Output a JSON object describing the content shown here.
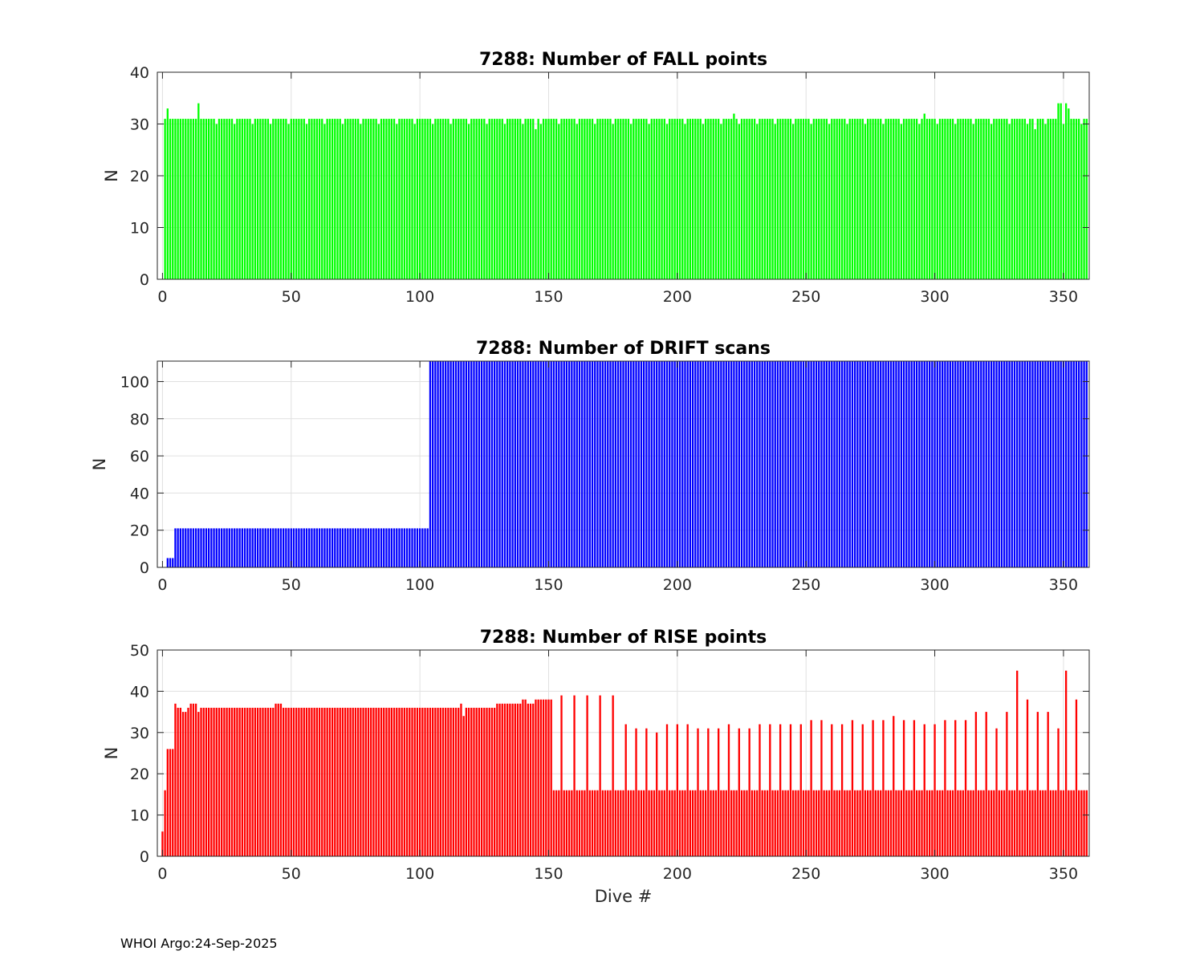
{
  "footer": {
    "text": "WHOI Argo:24-Sep-2025"
  },
  "chart_data": [
    {
      "type": "bar",
      "title": "7288: Number of FALL points",
      "xlabel": "",
      "ylabel": "N",
      "xlim": [
        -2,
        360
      ],
      "ylim": [
        0,
        40
      ],
      "xticks": [
        0,
        50,
        100,
        150,
        200,
        250,
        300,
        350
      ],
      "yticks": [
        0,
        10,
        20,
        30,
        40
      ],
      "color": "#00ff00",
      "segments": [
        {
          "from": 1,
          "to": 1,
          "value": 31
        },
        {
          "from": 2,
          "to": 2,
          "value": 33
        },
        {
          "from": 3,
          "to": 13,
          "value": 31
        },
        {
          "from": 14,
          "to": 14,
          "value": 34
        },
        {
          "from": 15,
          "to": 70,
          "value": 31
        },
        {
          "from": 71,
          "to": 144,
          "value": 31
        },
        {
          "from": 145,
          "to": 145,
          "value": 29
        },
        {
          "from": 146,
          "to": 221,
          "value": 31
        },
        {
          "from": 222,
          "to": 222,
          "value": 32
        },
        {
          "from": 223,
          "to": 295,
          "value": 31
        },
        {
          "from": 296,
          "to": 296,
          "value": 32
        },
        {
          "from": 297,
          "to": 338,
          "value": 31
        },
        {
          "from": 339,
          "to": 339,
          "value": 29
        },
        {
          "from": 340,
          "to": 347,
          "value": 31
        },
        {
          "from": 348,
          "to": 349,
          "value": 34
        },
        {
          "from": 350,
          "to": 350,
          "value": 31
        },
        {
          "from": 351,
          "to": 351,
          "value": 34
        },
        {
          "from": 352,
          "to": 352,
          "value": 33
        },
        {
          "from": 353,
          "to": 359,
          "value": 31
        }
      ],
      "dips": {
        "value": 30,
        "every": 7
      }
    },
    {
      "type": "bar",
      "title": "7288: Number of DRIFT scans",
      "xlabel": "",
      "ylabel": "N",
      "xlim": [
        -2,
        360
      ],
      "ylim": [
        0,
        111
      ],
      "xticks": [
        0,
        50,
        100,
        150,
        200,
        250,
        300,
        350
      ],
      "yticks": [
        0,
        20,
        40,
        60,
        80,
        100
      ],
      "color": "#0000ff",
      "segments": [
        {
          "from": 1,
          "to": 1,
          "value": 0
        },
        {
          "from": 2,
          "to": 4,
          "value": 5
        },
        {
          "from": 5,
          "to": 103,
          "value": 21
        },
        {
          "from": 104,
          "to": 359,
          "value": 111
        }
      ]
    },
    {
      "type": "bar",
      "title": "7288: Number of RISE points",
      "xlabel": "Dive #",
      "ylabel": "N",
      "xlim": [
        -2,
        360
      ],
      "ylim": [
        0,
        50
      ],
      "xticks": [
        0,
        50,
        100,
        150,
        200,
        250,
        300,
        350
      ],
      "yticks": [
        0,
        10,
        20,
        30,
        40,
        50
      ],
      "color": "#ff0000",
      "segments": [
        {
          "from": 0,
          "to": 0,
          "value": 6
        },
        {
          "from": 1,
          "to": 1,
          "value": 16
        },
        {
          "from": 2,
          "to": 4,
          "value": 26
        },
        {
          "from": 5,
          "to": 5,
          "value": 37
        },
        {
          "from": 6,
          "to": 7,
          "value": 36
        },
        {
          "from": 8,
          "to": 9,
          "value": 35
        },
        {
          "from": 10,
          "to": 10,
          "value": 36
        },
        {
          "from": 11,
          "to": 13,
          "value": 37
        },
        {
          "from": 14,
          "to": 14,
          "value": 35
        },
        {
          "from": 15,
          "to": 43,
          "value": 36
        },
        {
          "from": 44,
          "to": 46,
          "value": 37
        },
        {
          "from": 47,
          "to": 115,
          "value": 36
        },
        {
          "from": 116,
          "to": 116,
          "value": 37
        },
        {
          "from": 117,
          "to": 117,
          "value": 34
        },
        {
          "from": 118,
          "to": 129,
          "value": 36
        },
        {
          "from": 130,
          "to": 139,
          "value": 37
        },
        {
          "from": 140,
          "to": 141,
          "value": 38
        },
        {
          "from": 142,
          "to": 144,
          "value": 37
        },
        {
          "from": 145,
          "to": 151,
          "value": 38
        },
        {
          "from": 152,
          "to": 359,
          "value": 16
        }
      ],
      "peaks": [
        [
          155,
          39
        ],
        [
          160,
          39
        ],
        [
          165,
          39
        ],
        [
          170,
          39
        ],
        [
          175,
          39
        ],
        [
          180,
          32
        ],
        [
          184,
          31
        ],
        [
          188,
          31
        ],
        [
          192,
          30
        ],
        [
          196,
          32
        ],
        [
          200,
          32
        ],
        [
          204,
          32
        ],
        [
          208,
          31
        ],
        [
          212,
          31
        ],
        [
          216,
          31
        ],
        [
          220,
          32
        ],
        [
          224,
          31
        ],
        [
          228,
          31
        ],
        [
          232,
          32
        ],
        [
          236,
          32
        ],
        [
          240,
          32
        ],
        [
          244,
          32
        ],
        [
          248,
          32
        ],
        [
          252,
          33
        ],
        [
          256,
          33
        ],
        [
          260,
          32
        ],
        [
          264,
          32
        ],
        [
          268,
          33
        ],
        [
          272,
          32
        ],
        [
          276,
          33
        ],
        [
          280,
          33
        ],
        [
          284,
          34
        ],
        [
          288,
          33
        ],
        [
          292,
          33
        ],
        [
          296,
          32
        ],
        [
          300,
          32
        ],
        [
          304,
          33
        ],
        [
          308,
          33
        ],
        [
          312,
          33
        ],
        [
          316,
          35
        ],
        [
          320,
          35
        ],
        [
          324,
          31
        ],
        [
          328,
          35
        ],
        [
          332,
          45
        ],
        [
          336,
          38
        ],
        [
          340,
          35
        ],
        [
          344,
          35
        ],
        [
          348,
          31
        ],
        [
          351,
          45
        ],
        [
          355,
          38
        ]
      ]
    }
  ]
}
